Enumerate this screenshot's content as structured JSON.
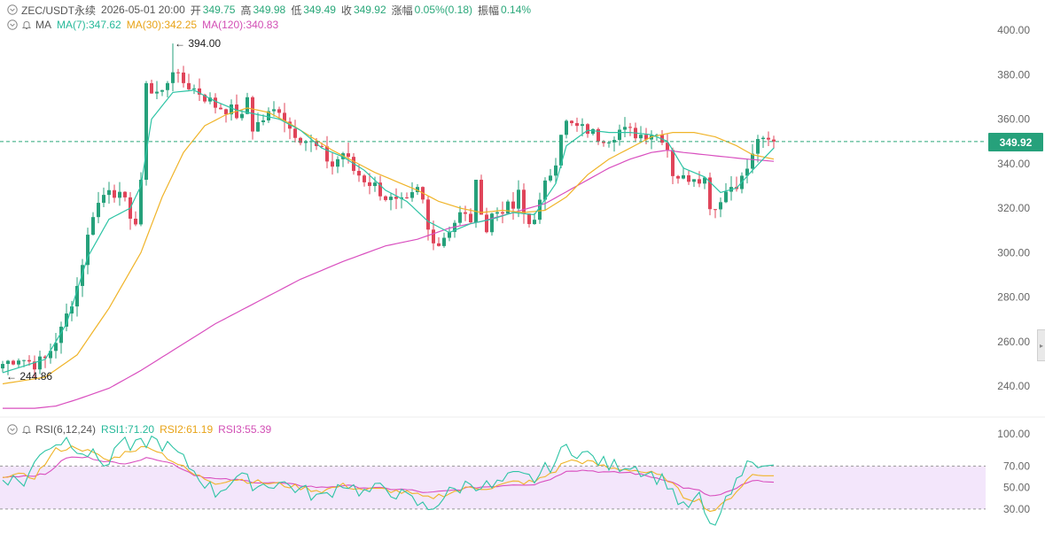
{
  "header": {
    "symbol": "ZEC/USDT永续",
    "datetime": "2026-05-01 20:00",
    "open_label": "开",
    "open": "349.75",
    "high_label": "高",
    "high": "349.98",
    "low_label": "低",
    "low": "349.49",
    "close_label": "收",
    "close": "349.92",
    "change_label": "涨幅",
    "change": "0.05%(0.18)",
    "amplitude_label": "振幅",
    "amplitude": "0.14%"
  },
  "ma_legend": {
    "label": "MA",
    "ma7": "MA(7):347.62",
    "ma30": "MA(30):342.25",
    "ma120": "MA(120):340.83"
  },
  "rsi_legend": {
    "label": "RSI(6,12,24)",
    "rsi1": "RSI1:71.20",
    "rsi2": "RSI2:61.19",
    "rsi3": "RSI3:55.39"
  },
  "current_price": "349.92",
  "max_label": "394.00",
  "min_label": "244.86",
  "colors": {
    "up": "#26a17b",
    "down": "#e0455a",
    "ma7": "#2ec4a5",
    "ma30": "#f0b429",
    "ma120": "#d94fbf",
    "rsi_band": "#f3e6fb"
  },
  "icons": [
    "chevron-down-icon",
    "bell-icon",
    "chevron-down-icon"
  ],
  "chart_data": {
    "type": "candlestick",
    "price_axis": {
      "ticks": [
        "400.00",
        "380.00",
        "360.00",
        "340.00",
        "320.00",
        "300.00",
        "280.00",
        "260.00",
        "240.00"
      ],
      "ylim": [
        232,
        404
      ]
    },
    "rsi_axis": {
      "ticks": [
        "100.00",
        "70.00",
        "50.00",
        "30.00"
      ],
      "ylim": [
        0,
        110
      ]
    },
    "anchors": [
      [
        0,
        250
      ],
      [
        3,
        253
      ],
      [
        6,
        250
      ],
      [
        8,
        252
      ],
      [
        11,
        265
      ],
      [
        14,
        285
      ],
      [
        17,
        318
      ],
      [
        20,
        330
      ],
      [
        23,
        322
      ],
      [
        25,
        313
      ],
      [
        26,
        330
      ],
      [
        27,
        378
      ],
      [
        28,
        372
      ],
      [
        30,
        372
      ],
      [
        32,
        383
      ],
      [
        33,
        378
      ],
      [
        35,
        375
      ],
      [
        37,
        372
      ],
      [
        40,
        366
      ],
      [
        43,
        364
      ],
      [
        45,
        360
      ],
      [
        46,
        370
      ],
      [
        47,
        356
      ],
      [
        50,
        362
      ],
      [
        52,
        365
      ],
      [
        54,
        356
      ],
      [
        56,
        352
      ],
      [
        58,
        349
      ],
      [
        60,
        345
      ],
      [
        62,
        339
      ],
      [
        64,
        345
      ],
      [
        66,
        337
      ],
      [
        68,
        333
      ],
      [
        70,
        330
      ],
      [
        72,
        325
      ],
      [
        74,
        322
      ],
      [
        76,
        322
      ],
      [
        78,
        328
      ],
      [
        79,
        323
      ],
      [
        80,
        310
      ],
      [
        82,
        304
      ],
      [
        84,
        311
      ],
      [
        86,
        317
      ],
      [
        88,
        315
      ],
      [
        89,
        330
      ],
      [
        90,
        320
      ],
      [
        91,
        310
      ],
      [
        92,
        317
      ],
      [
        94,
        320
      ],
      [
        96,
        320
      ],
      [
        97,
        326
      ],
      [
        98,
        317
      ],
      [
        99,
        313
      ],
      [
        100,
        317
      ],
      [
        101,
        322
      ],
      [
        102,
        330
      ],
      [
        104,
        342
      ],
      [
        105,
        355
      ],
      [
        106,
        358
      ],
      [
        108,
        356
      ],
      [
        110,
        355
      ],
      [
        112,
        352
      ],
      [
        114,
        352
      ],
      [
        116,
        355
      ],
      [
        118,
        354
      ],
      [
        120,
        353
      ],
      [
        122,
        354
      ],
      [
        124,
        352
      ],
      [
        125,
        347
      ],
      [
        126,
        336
      ],
      [
        128,
        333
      ],
      [
        130,
        335
      ],
      [
        132,
        333
      ],
      [
        133,
        322
      ],
      [
        134,
        320
      ],
      [
        135,
        325
      ],
      [
        137,
        330
      ],
      [
        139,
        333
      ],
      [
        141,
        343
      ],
      [
        142,
        352
      ],
      [
        143,
        349
      ],
      [
        145,
        350
      ]
    ],
    "ma7_anchors": [
      [
        0,
        246
      ],
      [
        4,
        249
      ],
      [
        8,
        252
      ],
      [
        12,
        268
      ],
      [
        16,
        298
      ],
      [
        20,
        315
      ],
      [
        24,
        320
      ],
      [
        26,
        330
      ],
      [
        28,
        360
      ],
      [
        32,
        372
      ],
      [
        36,
        373
      ],
      [
        40,
        368
      ],
      [
        44,
        364
      ],
      [
        48,
        362
      ],
      [
        52,
        360
      ],
      [
        56,
        355
      ],
      [
        60,
        347
      ],
      [
        64,
        343
      ],
      [
        68,
        337
      ],
      [
        72,
        328
      ],
      [
        76,
        323
      ],
      [
        80,
        314
      ],
      [
        84,
        309
      ],
      [
        88,
        313
      ],
      [
        92,
        315
      ],
      [
        96,
        318
      ],
      [
        100,
        317
      ],
      [
        104,
        331
      ],
      [
        106,
        348
      ],
      [
        110,
        355
      ],
      [
        114,
        354
      ],
      [
        118,
        354
      ],
      [
        122,
        353
      ],
      [
        125,
        350
      ],
      [
        128,
        338
      ],
      [
        132,
        334
      ],
      [
        135,
        327
      ],
      [
        138,
        329
      ],
      [
        141,
        337
      ],
      [
        145,
        347
      ]
    ],
    "ma30_anchors": [
      [
        0,
        241
      ],
      [
        8,
        244
      ],
      [
        14,
        254
      ],
      [
        20,
        275
      ],
      [
        26,
        300
      ],
      [
        30,
        325
      ],
      [
        34,
        345
      ],
      [
        38,
        357
      ],
      [
        42,
        362
      ],
      [
        46,
        365
      ],
      [
        50,
        363
      ],
      [
        54,
        358
      ],
      [
        58,
        352
      ],
      [
        62,
        346
      ],
      [
        66,
        341
      ],
      [
        70,
        336
      ],
      [
        74,
        332
      ],
      [
        78,
        328
      ],
      [
        82,
        323
      ],
      [
        86,
        320
      ],
      [
        90,
        318
      ],
      [
        94,
        319
      ],
      [
        98,
        318
      ],
      [
        102,
        319
      ],
      [
        106,
        325
      ],
      [
        110,
        335
      ],
      [
        114,
        342
      ],
      [
        118,
        347
      ],
      [
        122,
        352
      ],
      [
        126,
        354
      ],
      [
        130,
        354
      ],
      [
        134,
        352
      ],
      [
        138,
        348
      ],
      [
        141,
        344
      ],
      [
        145,
        342
      ]
    ],
    "ma120_anchors": [
      [
        0,
        230
      ],
      [
        6,
        230
      ],
      [
        10,
        231
      ],
      [
        14,
        234
      ],
      [
        20,
        239
      ],
      [
        26,
        247
      ],
      [
        32,
        256
      ],
      [
        40,
        268
      ],
      [
        48,
        278
      ],
      [
        56,
        288
      ],
      [
        64,
        296
      ],
      [
        72,
        303
      ],
      [
        78,
        306
      ],
      [
        84,
        311
      ],
      [
        90,
        314
      ],
      [
        96,
        318
      ],
      [
        102,
        322
      ],
      [
        108,
        330
      ],
      [
        114,
        338
      ],
      [
        118,
        342
      ],
      [
        122,
        345
      ],
      [
        125,
        346
      ],
      [
        128,
        345
      ],
      [
        132,
        344
      ],
      [
        136,
        343
      ],
      [
        140,
        342
      ],
      [
        145,
        341
      ]
    ],
    "rsi1_anchors": [
      [
        0,
        60
      ],
      [
        4,
        55
      ],
      [
        8,
        88
      ],
      [
        12,
        95
      ],
      [
        16,
        82
      ],
      [
        20,
        72
      ],
      [
        22,
        95
      ],
      [
        24,
        85
      ],
      [
        28,
        95
      ],
      [
        32,
        85
      ],
      [
        36,
        65
      ],
      [
        40,
        45
      ],
      [
        44,
        60
      ],
      [
        48,
        52
      ],
      [
        52,
        55
      ],
      [
        56,
        48
      ],
      [
        60,
        40
      ],
      [
        64,
        55
      ],
      [
        68,
        45
      ],
      [
        72,
        50
      ],
      [
        76,
        40
      ],
      [
        80,
        30
      ],
      [
        84,
        45
      ],
      [
        88,
        55
      ],
      [
        92,
        50
      ],
      [
        96,
        60
      ],
      [
        100,
        58
      ],
      [
        104,
        75
      ],
      [
        106,
        88
      ],
      [
        110,
        80
      ],
      [
        114,
        70
      ],
      [
        118,
        72
      ],
      [
        122,
        62
      ],
      [
        125,
        55
      ],
      [
        128,
        30
      ],
      [
        131,
        40
      ],
      [
        133,
        12
      ],
      [
        135,
        25
      ],
      [
        137,
        45
      ],
      [
        139,
        60
      ],
      [
        141,
        80
      ],
      [
        143,
        70
      ],
      [
        145,
        71
      ]
    ],
    "rsi2_anchors": [
      [
        0,
        62
      ],
      [
        6,
        60
      ],
      [
        10,
        85
      ],
      [
        14,
        88
      ],
      [
        20,
        75
      ],
      [
        24,
        85
      ],
      [
        28,
        88
      ],
      [
        32,
        75
      ],
      [
        36,
        62
      ],
      [
        40,
        55
      ],
      [
        44,
        58
      ],
      [
        48,
        55
      ],
      [
        52,
        53
      ],
      [
        56,
        50
      ],
      [
        60,
        47
      ],
      [
        64,
        52
      ],
      [
        68,
        48
      ],
      [
        72,
        48
      ],
      [
        76,
        45
      ],
      [
        80,
        40
      ],
      [
        84,
        45
      ],
      [
        88,
        50
      ],
      [
        92,
        50
      ],
      [
        96,
        55
      ],
      [
        100,
        55
      ],
      [
        104,
        66
      ],
      [
        106,
        75
      ],
      [
        110,
        74
      ],
      [
        114,
        68
      ],
      [
        118,
        67
      ],
      [
        122,
        63
      ],
      [
        125,
        58
      ],
      [
        128,
        42
      ],
      [
        131,
        38
      ],
      [
        133,
        28
      ],
      [
        135,
        32
      ],
      [
        137,
        42
      ],
      [
        139,
        52
      ],
      [
        141,
        62
      ],
      [
        143,
        61
      ],
      [
        145,
        61
      ]
    ],
    "rsi3_anchors": [
      [
        0,
        60
      ],
      [
        8,
        62
      ],
      [
        12,
        78
      ],
      [
        16,
        78
      ],
      [
        22,
        72
      ],
      [
        28,
        78
      ],
      [
        32,
        72
      ],
      [
        36,
        62
      ],
      [
        40,
        58
      ],
      [
        44,
        57
      ],
      [
        48,
        55
      ],
      [
        52,
        54
      ],
      [
        56,
        52
      ],
      [
        60,
        50
      ],
      [
        64,
        52
      ],
      [
        68,
        50
      ],
      [
        72,
        49
      ],
      [
        76,
        48
      ],
      [
        80,
        45
      ],
      [
        84,
        47
      ],
      [
        88,
        50
      ],
      [
        92,
        51
      ],
      [
        96,
        53
      ],
      [
        100,
        53
      ],
      [
        104,
        60
      ],
      [
        106,
        66
      ],
      [
        110,
        66
      ],
      [
        114,
        64
      ],
      [
        118,
        64
      ],
      [
        122,
        60
      ],
      [
        125,
        57
      ],
      [
        128,
        50
      ],
      [
        131,
        47
      ],
      [
        133,
        42
      ],
      [
        135,
        43
      ],
      [
        137,
        47
      ],
      [
        139,
        52
      ],
      [
        141,
        56
      ],
      [
        145,
        55
      ]
    ]
  }
}
